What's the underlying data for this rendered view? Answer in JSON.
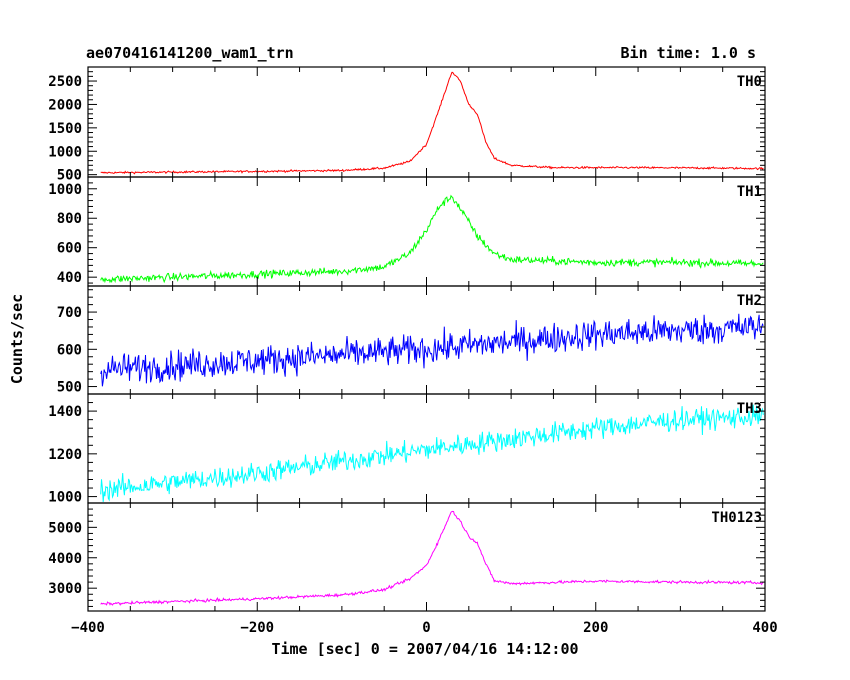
{
  "header": {
    "title": "ae070416141200_wam1_trn",
    "bin_time": "Bin time: 1.0 s"
  },
  "chart_data": {
    "type": "line",
    "xlabel": "Time [sec] 0 = 2007/04/16 14:12:00",
    "ylabel": "Counts/sec",
    "xlim": [
      -400,
      400
    ],
    "xticks": [
      -400,
      -200,
      0,
      200,
      400
    ],
    "grid": false,
    "panels": [
      {
        "name": "TH0",
        "color": "#ff0000",
        "ylim": [
          450,
          2800
        ],
        "yticks": [
          500,
          1000,
          1500,
          2000,
          2500
        ],
        "noise": 20,
        "points": [
          [
            -385,
            540
          ],
          [
            -300,
            555
          ],
          [
            -200,
            570
          ],
          [
            -100,
            590
          ],
          [
            -50,
            640
          ],
          [
            -20,
            780
          ],
          [
            0,
            1150
          ],
          [
            15,
            1900
          ],
          [
            30,
            2700
          ],
          [
            40,
            2500
          ],
          [
            50,
            2000
          ],
          [
            60,
            1800
          ],
          [
            70,
            1200
          ],
          [
            80,
            850
          ],
          [
            100,
            700
          ],
          [
            150,
            650
          ],
          [
            250,
            650
          ],
          [
            350,
            640
          ],
          [
            398,
            630
          ]
        ]
      },
      {
        "name": "TH1",
        "color": "#00ff00",
        "ylim": [
          340,
          1080
        ],
        "yticks": [
          400,
          600,
          800,
          1000
        ],
        "noise": 25,
        "points": [
          [
            -385,
            385
          ],
          [
            -300,
            400
          ],
          [
            -200,
            420
          ],
          [
            -100,
            440
          ],
          [
            -50,
            470
          ],
          [
            -20,
            560
          ],
          [
            0,
            720
          ],
          [
            15,
            880
          ],
          [
            30,
            950
          ],
          [
            45,
            820
          ],
          [
            60,
            680
          ],
          [
            80,
            560
          ],
          [
            100,
            520
          ],
          [
            200,
            500
          ],
          [
            300,
            500
          ],
          [
            398,
            490
          ]
        ]
      },
      {
        "name": "TH2",
        "color": "#0000ff",
        "ylim": [
          480,
          770
        ],
        "yticks": [
          500,
          600,
          700
        ],
        "noise": 40,
        "points": [
          [
            -385,
            545
          ],
          [
            -200,
            570
          ],
          [
            0,
            600
          ],
          [
            200,
            640
          ],
          [
            398,
            660
          ]
        ]
      },
      {
        "name": "TH3",
        "color": "#00ffff",
        "ylim": [
          970,
          1480
        ],
        "yticks": [
          1000,
          1200,
          1400
        ],
        "noise": 50,
        "points": [
          [
            -385,
            1030
          ],
          [
            -200,
            1110
          ],
          [
            0,
            1220
          ],
          [
            200,
            1320
          ],
          [
            300,
            1360
          ],
          [
            398,
            1375
          ]
        ]
      },
      {
        "name": "TH0123",
        "color": "#ff00ff",
        "ylim": [
          2250,
          5800
        ],
        "yticks": [
          3000,
          4000,
          5000
        ],
        "noise": 45,
        "points": [
          [
            -385,
            2480
          ],
          [
            -300,
            2560
          ],
          [
            -200,
            2650
          ],
          [
            -100,
            2780
          ],
          [
            -50,
            2950
          ],
          [
            -20,
            3300
          ],
          [
            0,
            3750
          ],
          [
            15,
            4600
          ],
          [
            30,
            5550
          ],
          [
            40,
            5200
          ],
          [
            50,
            4700
          ],
          [
            60,
            4500
          ],
          [
            70,
            3800
          ],
          [
            80,
            3250
          ],
          [
            100,
            3150
          ],
          [
            200,
            3230
          ],
          [
            300,
            3200
          ],
          [
            398,
            3180
          ]
        ]
      }
    ]
  }
}
